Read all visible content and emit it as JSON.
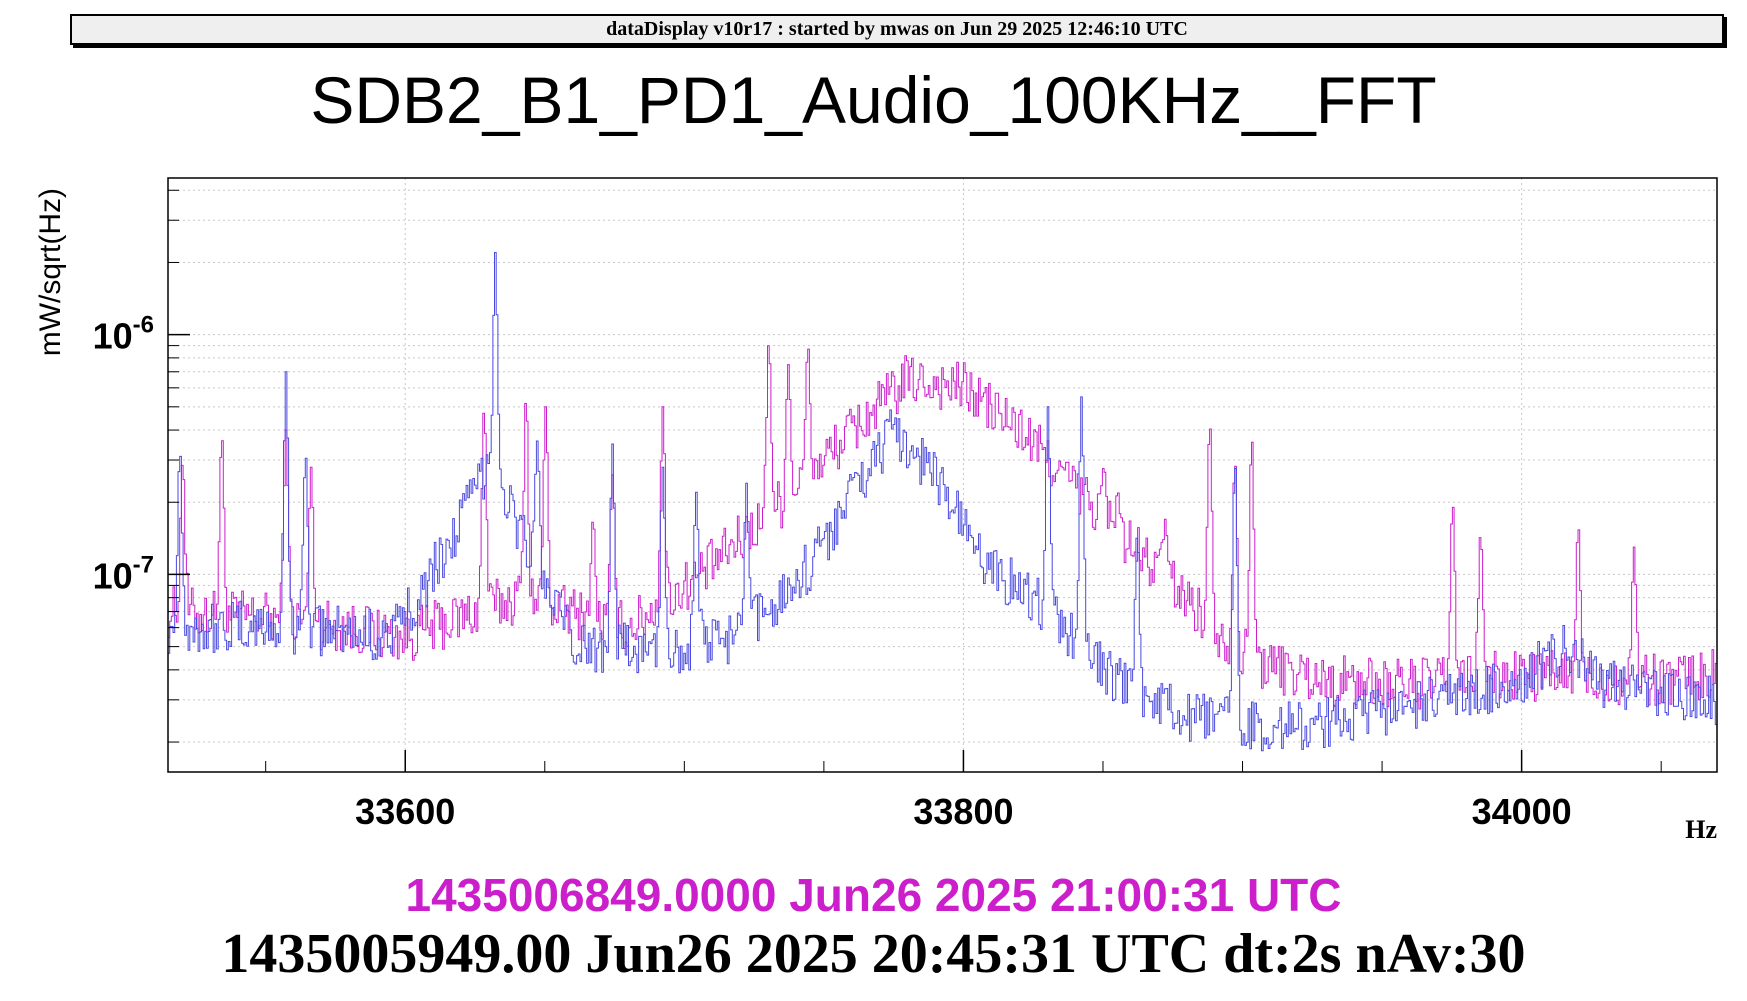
{
  "header": {
    "banner": "dataDisplay v10r17 : started by mwas on Jun 29 2025 12:46:10 UTC"
  },
  "chart_data": {
    "type": "line",
    "title": "SDB2_B1_PD1_Audio_100KHz__FFT",
    "xlabel": "Hz",
    "ylabel": "mW/sqrt(Hz)",
    "yscale": "log",
    "xlim": [
      33515,
      34070
    ],
    "ylim": [
      1.5e-08,
      4.5e-06
    ],
    "grid": true,
    "x_ticks": [
      33600,
      33800,
      34000
    ],
    "y_ticks": [
      {
        "value": 1e-07,
        "base": "10",
        "exp": "-7"
      },
      {
        "value": 1e-06,
        "base": "10",
        "exp": "-6"
      }
    ],
    "series": [
      {
        "color": "#cc1fcc",
        "base": [
          [
            33515,
            7e-08
          ],
          [
            33560,
            6.5e-08
          ],
          [
            33600,
            5.5e-08
          ],
          [
            33640,
            8e-08
          ],
          [
            33680,
            6e-08
          ],
          [
            33710,
            1.1e-07
          ],
          [
            33740,
            2.3e-07
          ],
          [
            33760,
            4e-07
          ],
          [
            33780,
            6.5e-07
          ],
          [
            33800,
            6e-07
          ],
          [
            33820,
            4e-07
          ],
          [
            33840,
            2.3e-07
          ],
          [
            33860,
            1.3e-07
          ],
          [
            33880,
            8e-08
          ],
          [
            33900,
            4.5e-08
          ],
          [
            33930,
            3.6e-08
          ],
          [
            33960,
            3.5e-08
          ],
          [
            34000,
            3.8e-08
          ],
          [
            34040,
            3.6e-08
          ],
          [
            34070,
            3.8e-08
          ]
        ],
        "peaks": [
          [
            33520,
            3e-07
          ],
          [
            33534,
            3.8e-07
          ],
          [
            33557,
            4e-07
          ],
          [
            33566,
            2.8e-07
          ],
          [
            33628,
            5e-07
          ],
          [
            33643,
            5.5e-07
          ],
          [
            33650,
            5e-07
          ],
          [
            33667,
            1.7e-07
          ],
          [
            33674,
            2.6e-07
          ],
          [
            33692,
            5e-07
          ],
          [
            33730,
            9.5e-07
          ],
          [
            33737,
            7.5e-07
          ],
          [
            33744,
            9e-07
          ],
          [
            33850,
            2.8e-07
          ],
          [
            33855,
            2.2e-07
          ],
          [
            33872,
            1.7e-07
          ],
          [
            33888,
            4.3e-07
          ],
          [
            33897,
            3e-07
          ],
          [
            33903,
            3.8e-07
          ],
          [
            33975,
            2e-07
          ],
          [
            33985,
            1.5e-07
          ],
          [
            34020,
            1.6e-07
          ],
          [
            34040,
            1.3e-07
          ]
        ]
      },
      {
        "color": "#4a4ae0",
        "base": [
          [
            33515,
            6e-08
          ],
          [
            33560,
            6e-08
          ],
          [
            33595,
            5.5e-08
          ],
          [
            33615,
            1.3e-07
          ],
          [
            33630,
            3e-07
          ],
          [
            33645,
            1.2e-07
          ],
          [
            33660,
            5e-08
          ],
          [
            33690,
            4.8e-08
          ],
          [
            33720,
            5.5e-08
          ],
          [
            33745,
            1.1e-07
          ],
          [
            33760,
            2.2e-07
          ],
          [
            33775,
            4e-07
          ],
          [
            33790,
            2.6e-07
          ],
          [
            33805,
            1.2e-07
          ],
          [
            33830,
            7e-08
          ],
          [
            33855,
            3.5e-08
          ],
          [
            33880,
            2.5e-08
          ],
          [
            33920,
            2.3e-08
          ],
          [
            33960,
            2.8e-08
          ],
          [
            34000,
            3.6e-08
          ],
          [
            34015,
            5e-08
          ],
          [
            34030,
            3.4e-08
          ],
          [
            34070,
            3e-08
          ]
        ],
        "peaks": [
          [
            33519,
            3.3e-07
          ],
          [
            33557,
            7e-07
          ],
          [
            33564,
            3.2e-07
          ],
          [
            33632,
            2.2e-06
          ],
          [
            33647,
            3.6e-07
          ],
          [
            33674,
            3.5e-07
          ],
          [
            33692,
            2.8e-07
          ],
          [
            33704,
            2.2e-07
          ],
          [
            33722,
            2.4e-07
          ],
          [
            33830,
            5e-07
          ],
          [
            33842,
            5.5e-07
          ],
          [
            33862,
            1.5e-07
          ],
          [
            33897,
            3e-07
          ]
        ]
      }
    ]
  },
  "footer": {
    "timestamp_magenta": "1435006849.0000 Jun26 2025 21:00:31 UTC",
    "timestamp_black": "1435005949.00 Jun26 2025 20:45:31 UTC dt:2s nAv:30"
  }
}
